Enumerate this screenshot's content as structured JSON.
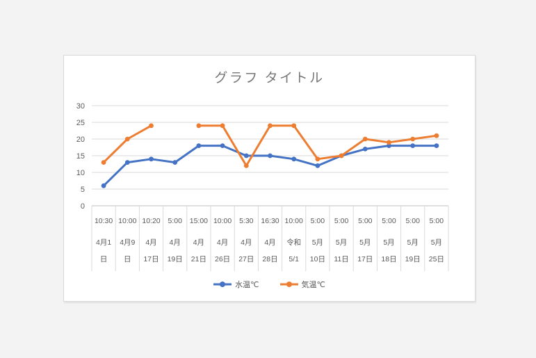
{
  "window": {
    "background_color": "#f2f3f2"
  },
  "card": {
    "background_color": "#ffffff",
    "border_color": "#d9d9d9"
  },
  "chart_data": {
    "type": "line",
    "title": "グラフ タイトル",
    "grid": true,
    "legend_position": "bottom",
    "y_axis": {
      "min": 0,
      "max": 30,
      "tick_step": 5,
      "ticks": [
        0,
        5,
        10,
        15,
        20,
        25,
        30
      ]
    },
    "x_axis": {
      "levels": [
        "time",
        "date"
      ],
      "categories": [
        {
          "time": "10:30",
          "date": "4月1日",
          "date_lines": [
            "4月1",
            "日"
          ]
        },
        {
          "time": "10:00",
          "date": "4月9日",
          "date_lines": [
            "4月9",
            "日"
          ]
        },
        {
          "time": "10:20",
          "date": "4月17日",
          "date_lines": [
            "4月",
            "17日"
          ]
        },
        {
          "time": "5:00",
          "date": "4月19日",
          "date_lines": [
            "4月",
            "19日"
          ]
        },
        {
          "time": "15:00",
          "date": "4月21日",
          "date_lines": [
            "4月",
            "21日"
          ]
        },
        {
          "time": "10:00",
          "date": "4月26日",
          "date_lines": [
            "4月",
            "26日"
          ]
        },
        {
          "time": "5:30",
          "date": "4月27日",
          "date_lines": [
            "4月",
            "27日"
          ]
        },
        {
          "time": "16:30",
          "date": "4月28日",
          "date_lines": [
            "4月",
            "28日"
          ]
        },
        {
          "time": "10:00",
          "date": "令和5/1",
          "date_lines": [
            "令和",
            "5/1"
          ]
        },
        {
          "time": "5:00",
          "date": "5月10日",
          "date_lines": [
            "5月",
            "10日"
          ]
        },
        {
          "time": "5:00",
          "date": "5月11日",
          "date_lines": [
            "5月",
            "11日"
          ]
        },
        {
          "time": "5:00",
          "date": "5月17日",
          "date_lines": [
            "5月",
            "17日"
          ]
        },
        {
          "time": "5:00",
          "date": "5月18日",
          "date_lines": [
            "5月",
            "18日"
          ]
        },
        {
          "time": "5:00",
          "date": "5月19日",
          "date_lines": [
            "5月",
            "19日"
          ]
        },
        {
          "time": "5:00",
          "date": "5月25日",
          "date_lines": [
            "5月",
            "25日"
          ]
        }
      ]
    },
    "series": [
      {
        "name": "水温℃",
        "slug": "water-temp",
        "color": "#4472c4",
        "values": [
          6,
          13,
          14,
          13,
          18,
          18,
          15,
          15,
          14,
          12,
          15,
          17,
          18,
          18,
          18
        ]
      },
      {
        "name": "気温℃",
        "slug": "air-temp",
        "color": "#ed7d31",
        "values": [
          13,
          20,
          24,
          null,
          24,
          24,
          12,
          24,
          24,
          14,
          15,
          20,
          19,
          20,
          21
        ]
      }
    ],
    "style": {
      "gridline_color": "#d9d9d9",
      "axis_line_color": "#bfbfbf",
      "axis_text_color": "#595959",
      "title_color": "#767676"
    }
  }
}
